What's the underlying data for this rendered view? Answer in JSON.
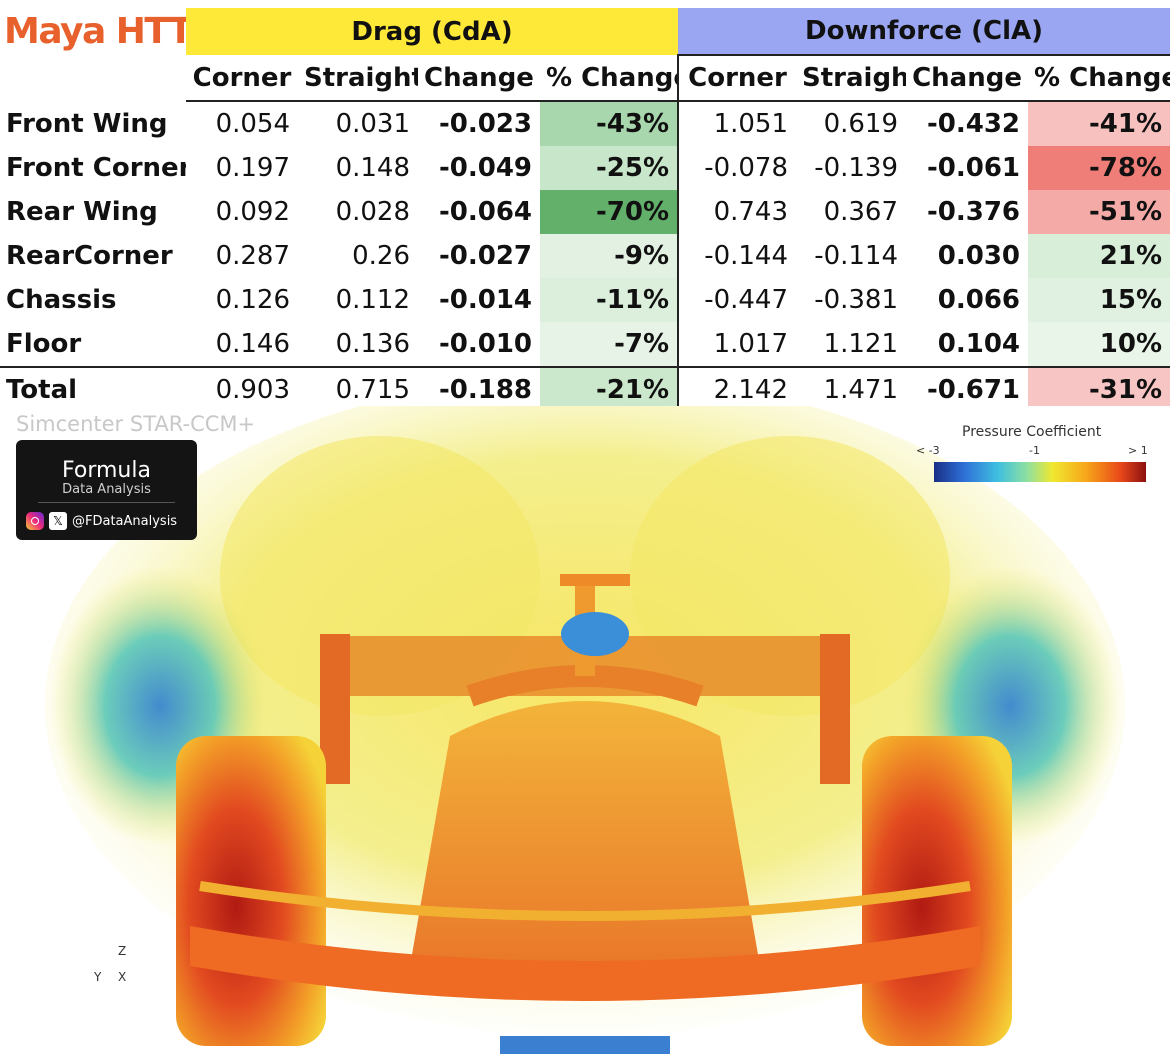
{
  "brand": "Maya HTT",
  "groups": {
    "drag": "Drag (CdA)",
    "downforce": "Downforce (ClA)"
  },
  "columns": [
    "Corner",
    "Straight",
    "Change",
    "% Change"
  ],
  "rows": [
    {
      "label": "Front Wing",
      "drag": [
        "0.054",
        "0.031",
        "-0.023",
        "-43%"
      ],
      "downforce": [
        "1.051",
        "0.619",
        "-0.432",
        "-41%"
      ]
    },
    {
      "label": "Front Corner",
      "drag": [
        "0.197",
        "0.148",
        "-0.049",
        "-25%"
      ],
      "downforce": [
        "-0.078",
        "-0.139",
        "-0.061",
        "-78%"
      ]
    },
    {
      "label": "Rear Wing",
      "drag": [
        "0.092",
        "0.028",
        "-0.064",
        "-70%"
      ],
      "downforce": [
        "0.743",
        "0.367",
        "-0.376",
        "-51%"
      ]
    },
    {
      "label": "RearCorner",
      "drag": [
        "0.287",
        "0.26",
        "-0.027",
        "-9%"
      ],
      "downforce": [
        "-0.144",
        "-0.114",
        "0.030",
        "21%"
      ]
    },
    {
      "label": "Chassis",
      "drag": [
        "0.126",
        "0.112",
        "-0.014",
        "-11%"
      ],
      "downforce": [
        "-0.447",
        "-0.381",
        "0.066",
        "15%"
      ]
    },
    {
      "label": "Floor",
      "drag": [
        "0.146",
        "0.136",
        "-0.010",
        "-7%"
      ],
      "downforce": [
        "1.017",
        "1.121",
        "0.104",
        "10%"
      ]
    }
  ],
  "total": {
    "label": "Total",
    "drag": [
      "0.903",
      "0.715",
      "-0.188",
      "-21%"
    ],
    "downforce": [
      "2.142",
      "1.471",
      "-0.671",
      "-31%"
    ]
  },
  "pct_colors": {
    "drag": [
      "#a9d7ad",
      "#c8e6c9",
      "#62b06a",
      "#e3f1e3",
      "#dcefdc",
      "#e6f3e6"
    ],
    "drag_total": "#cce8cc",
    "downforce": [
      "#f7c1bf",
      "#ef7d78",
      "#f4aaa7",
      "#d8eed8",
      "#e1f1e1",
      "#e8f5e8"
    ],
    "downforce_total": "#f7c5c3"
  },
  "image": {
    "watermark": "Simcenter STAR-CCM+",
    "logo_title": "Formula",
    "logo_subtitle": "Data Analysis",
    "social_handle": "@FDataAnalysis",
    "legend_title": "Pressure Coefficient",
    "legend_min": "< -3",
    "legend_mid": "-1",
    "legend_max": "> 1",
    "axis_z": "Z",
    "axis_y": "Y",
    "axis_x": "X"
  }
}
